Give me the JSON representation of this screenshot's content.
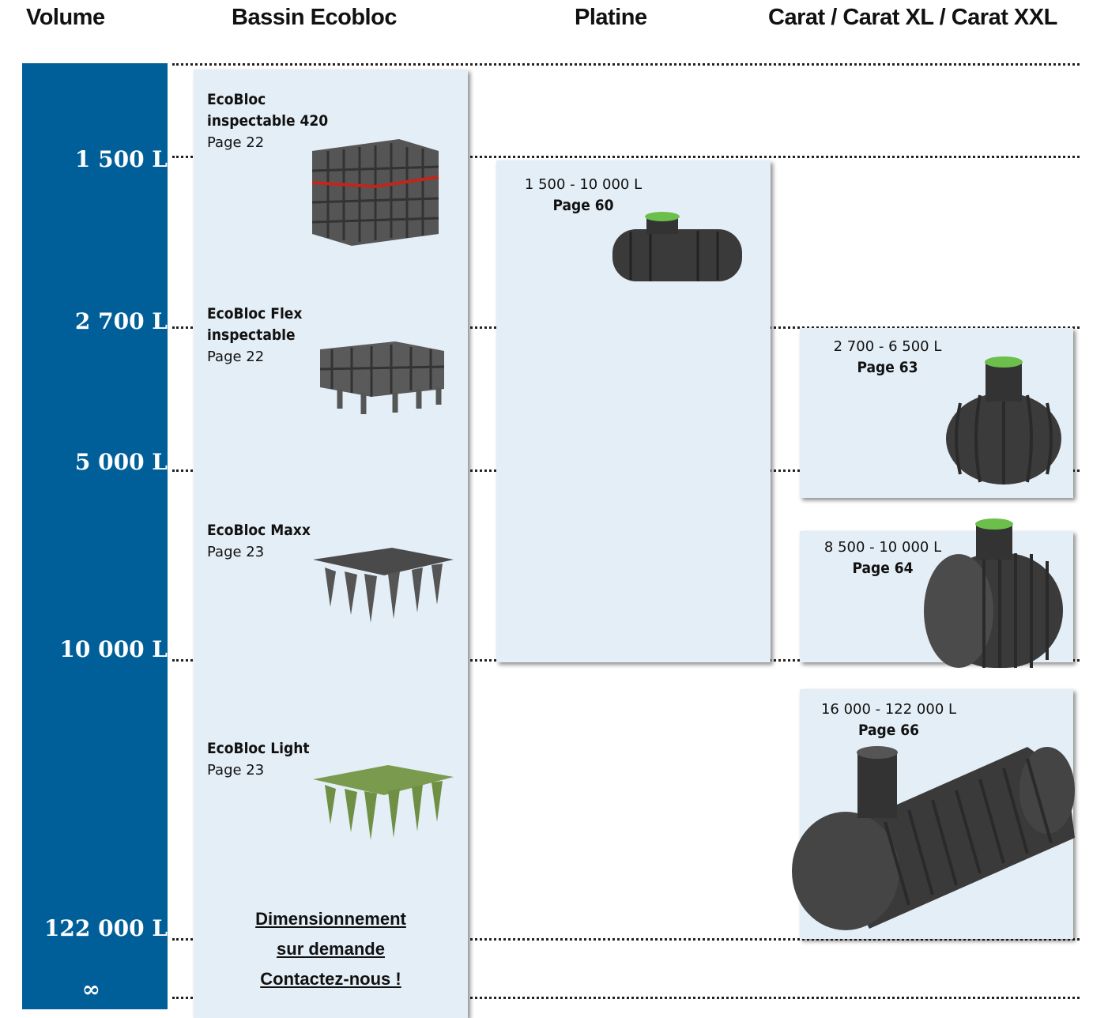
{
  "headers": [
    "Volume",
    "Bassin Ecobloc",
    "Platine",
    "Carat / Carat XL / Carat XXL"
  ],
  "volumes": [
    "1 500 L",
    "2 700 L",
    "5 000 L",
    "10 000 L",
    "122 000 L",
    "∞"
  ],
  "ecobloc": {
    "items": [
      {
        "name_lines": [
          "EcoBloc",
          "inspectable 420"
        ],
        "page": "Page 22"
      },
      {
        "name_lines": [
          "EcoBloc Flex",
          "inspectable"
        ],
        "page": "Page 22"
      },
      {
        "name_lines": [
          "EcoBloc Maxx"
        ],
        "page": "Page 23"
      },
      {
        "name_lines": [
          "EcoBloc Light"
        ],
        "page": "Page 23"
      }
    ],
    "contact_lines": [
      "Dimensionnement",
      "sur demande",
      "Contactez-nous !"
    ]
  },
  "platine": {
    "range": "1 500 - 10 000 L",
    "page": "Page 60"
  },
  "carat": [
    {
      "range": "2 700 - 6 500 L",
      "page": "Page 63"
    },
    {
      "range": "8 500 - 10 000 L",
      "page": "Page 64"
    },
    {
      "range": "16 000 - 122 000 L",
      "page": "Page 66"
    }
  ]
}
